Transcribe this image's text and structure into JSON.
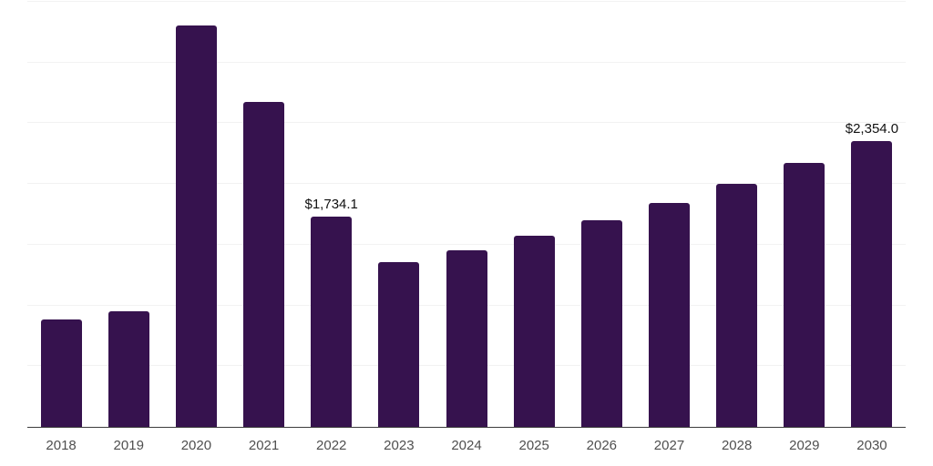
{
  "chart_data": {
    "type": "bar",
    "title": "",
    "xlabel": "",
    "ylabel": "",
    "categories": [
      "2018",
      "2019",
      "2020",
      "2021",
      "2022",
      "2023",
      "2024",
      "2025",
      "2026",
      "2027",
      "2028",
      "2029",
      "2030"
    ],
    "values": [
      885,
      950,
      3303,
      2672,
      1734.1,
      1358,
      1455,
      1577,
      1704,
      1847,
      2004,
      2177,
      2354
    ],
    "point_labels": [
      "",
      "",
      "",
      "",
      "$1,734.1",
      "",
      "",
      "",
      "",
      "",
      "",
      "",
      "$2,354.0"
    ],
    "ylim": [
      0,
      3500
    ],
    "gridline_interval": 500,
    "grid": "horizontal",
    "legend": "none",
    "colors": {
      "bar": "#36124e",
      "gridline": "#f2f2f2",
      "axis_line": "#3c3c3c",
      "tick_label": "#4f4f4f",
      "value_label": "#111111",
      "background": "#ffffff"
    }
  }
}
